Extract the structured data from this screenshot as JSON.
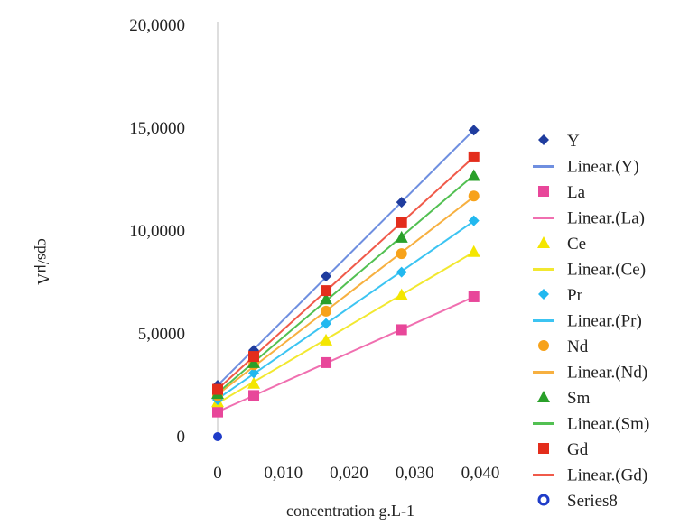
{
  "chart_data": {
    "type": "scatter",
    "xlabel": "concentration g.L-1",
    "ylabel": "cps/μA",
    "xlim": [
      0,
      0.04
    ],
    "ylim": [
      0,
      20
    ],
    "x_ticks": [
      {
        "value": 0,
        "label": "0"
      },
      {
        "value": 0.01,
        "label": "0,010"
      },
      {
        "value": 0.02,
        "label": "0,020"
      },
      {
        "value": 0.03,
        "label": "0,030"
      },
      {
        "value": 0.04,
        "label": "0,040"
      }
    ],
    "y_ticks": [
      {
        "value": 0,
        "label": "0"
      },
      {
        "value": 5,
        "label": "5,0000"
      },
      {
        "value": 10,
        "label": "10,0000"
      },
      {
        "value": 15,
        "label": "15,0000"
      },
      {
        "value": 20,
        "label": "20,0000"
      }
    ],
    "x": [
      0,
      0.0055,
      0.0165,
      0.028,
      0.039
    ],
    "series": [
      {
        "name": "Y",
        "trend_name": "Linear.(Y)",
        "marker": "diamond",
        "color": "#1f3c9e",
        "line_color": "#6f8fe0",
        "values": [
          2.5,
          4.2,
          7.8,
          11.4,
          14.9
        ]
      },
      {
        "name": "La",
        "trend_name": "Linear.(La)",
        "marker": "square",
        "color": "#e8479a",
        "line_color": "#f06fb0",
        "values": [
          1.2,
          2.0,
          3.6,
          5.2,
          6.8
        ]
      },
      {
        "name": "Ce",
        "trend_name": "Linear.(Ce)",
        "marker": "triangle",
        "color": "#f4e600",
        "line_color": "#f2e830",
        "values": [
          1.7,
          2.6,
          4.7,
          6.9,
          9.0
        ]
      },
      {
        "name": "Pr",
        "trend_name": "Linear.(Pr)",
        "marker": "diamond",
        "color": "#22b8ef",
        "line_color": "#3cc4f2",
        "values": [
          1.8,
          3.1,
          5.5,
          8.0,
          10.5
        ]
      },
      {
        "name": "Nd",
        "trend_name": "Linear.(Nd)",
        "marker": "circle",
        "color": "#f7a21a",
        "line_color": "#f7b040",
        "values": [
          2.0,
          3.5,
          6.1,
          8.9,
          11.7
        ]
      },
      {
        "name": "Sm",
        "trend_name": "Linear.(Sm)",
        "marker": "triangle",
        "color": "#2aa02a",
        "line_color": "#52c052",
        "values": [
          2.1,
          3.6,
          6.7,
          9.7,
          12.7
        ]
      },
      {
        "name": "Gd",
        "trend_name": "Linear.(Gd)",
        "marker": "square",
        "color": "#e32d1c",
        "line_color": "#f05a4a",
        "values": [
          2.3,
          3.9,
          7.1,
          10.4,
          13.6
        ]
      }
    ],
    "series8": {
      "name": "Series8",
      "marker": "circle-open",
      "color": "#1f3cc8",
      "x": [
        0
      ],
      "values": [
        0
      ]
    },
    "grid": false,
    "legend_position": "right"
  }
}
